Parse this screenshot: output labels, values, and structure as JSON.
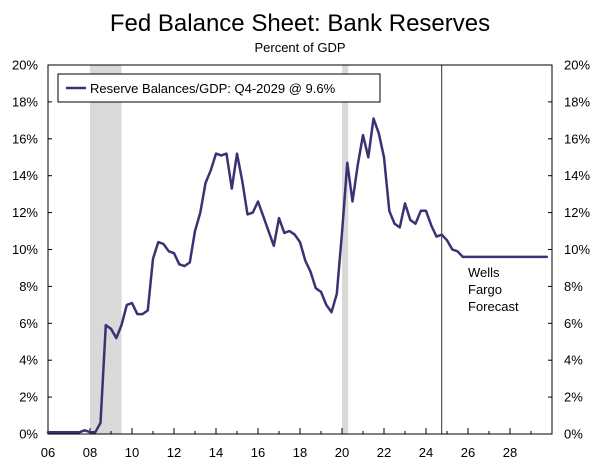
{
  "chart_data": {
    "type": "line",
    "title": "Fed Balance Sheet: Bank Reserves",
    "subtitle": "Percent of GDP",
    "xlabel": "",
    "ylabel": "",
    "xlim": [
      2006,
      2030
    ],
    "ylim": [
      0,
      20
    ],
    "x_ticks": [
      2006,
      2008,
      2010,
      2012,
      2014,
      2016,
      2018,
      2020,
      2022,
      2024,
      2026,
      2028
    ],
    "x_tick_labels": [
      "06",
      "08",
      "10",
      "12",
      "14",
      "16",
      "18",
      "20",
      "22",
      "24",
      "26",
      "28"
    ],
    "y_ticks": [
      0,
      2,
      4,
      6,
      8,
      10,
      12,
      14,
      16,
      18,
      20
    ],
    "y_tick_labels": [
      "0%",
      "2%",
      "4%",
      "6%",
      "8%",
      "10%",
      "12%",
      "14%",
      "16%",
      "18%",
      "20%"
    ],
    "legend": {
      "placement": "top-left",
      "entries": [
        "Reserve Balances/GDP: Q4-2029 @ 9.6%"
      ]
    },
    "recessions": [
      {
        "start": 2008.0,
        "end": 2009.5
      },
      {
        "start": 2020.0,
        "end": 2020.3
      }
    ],
    "forecast_start": 2024.75,
    "annotation": [
      "Wells",
      "Fargo",
      "Forecast"
    ],
    "colors": {
      "line": "#3b3275",
      "recession": "#d9d9d9",
      "axis": "#000000"
    },
    "series": [
      {
        "name": "Reserve Balances/GDP: Q4-2029 @ 9.6%",
        "points": [
          [
            2006.0,
            0.1
          ],
          [
            2006.5,
            0.1
          ],
          [
            2007.0,
            0.1
          ],
          [
            2007.5,
            0.1
          ],
          [
            2007.75,
            0.2
          ],
          [
            2008.0,
            0.1
          ],
          [
            2008.25,
            0.1
          ],
          [
            2008.5,
            0.6
          ],
          [
            2008.75,
            5.9
          ],
          [
            2009.0,
            5.7
          ],
          [
            2009.25,
            5.2
          ],
          [
            2009.5,
            5.9
          ],
          [
            2009.75,
            7.0
          ],
          [
            2010.0,
            7.1
          ],
          [
            2010.25,
            6.5
          ],
          [
            2010.5,
            6.5
          ],
          [
            2010.75,
            6.7
          ],
          [
            2011.0,
            9.5
          ],
          [
            2011.25,
            10.4
          ],
          [
            2011.5,
            10.3
          ],
          [
            2011.75,
            9.9
          ],
          [
            2012.0,
            9.8
          ],
          [
            2012.25,
            9.2
          ],
          [
            2012.5,
            9.1
          ],
          [
            2012.75,
            9.3
          ],
          [
            2013.0,
            11.0
          ],
          [
            2013.25,
            12.0
          ],
          [
            2013.5,
            13.6
          ],
          [
            2013.75,
            14.3
          ],
          [
            2014.0,
            15.2
          ],
          [
            2014.25,
            15.1
          ],
          [
            2014.5,
            15.2
          ],
          [
            2014.75,
            13.3
          ],
          [
            2015.0,
            15.2
          ],
          [
            2015.25,
            13.7
          ],
          [
            2015.5,
            11.9
          ],
          [
            2015.75,
            12.0
          ],
          [
            2016.0,
            12.6
          ],
          [
            2016.25,
            11.8
          ],
          [
            2016.5,
            11.0
          ],
          [
            2016.75,
            10.2
          ],
          [
            2017.0,
            11.7
          ],
          [
            2017.25,
            10.9
          ],
          [
            2017.5,
            11.0
          ],
          [
            2017.75,
            10.8
          ],
          [
            2018.0,
            10.4
          ],
          [
            2018.25,
            9.4
          ],
          [
            2018.5,
            8.8
          ],
          [
            2018.75,
            7.9
          ],
          [
            2019.0,
            7.7
          ],
          [
            2019.25,
            7.0
          ],
          [
            2019.5,
            6.6
          ],
          [
            2019.75,
            7.6
          ],
          [
            2020.0,
            10.9
          ],
          [
            2020.25,
            14.7
          ],
          [
            2020.5,
            12.6
          ],
          [
            2020.75,
            14.6
          ],
          [
            2021.0,
            16.2
          ],
          [
            2021.25,
            15.0
          ],
          [
            2021.5,
            17.1
          ],
          [
            2021.75,
            16.3
          ],
          [
            2022.0,
            15.0
          ],
          [
            2022.25,
            12.1
          ],
          [
            2022.5,
            11.4
          ],
          [
            2022.75,
            11.2
          ],
          [
            2023.0,
            12.5
          ],
          [
            2023.25,
            11.6
          ],
          [
            2023.5,
            11.4
          ],
          [
            2023.75,
            12.1
          ],
          [
            2024.0,
            12.1
          ],
          [
            2024.25,
            11.3
          ],
          [
            2024.5,
            10.7
          ],
          [
            2024.75,
            10.8
          ],
          [
            2025.0,
            10.5
          ],
          [
            2025.25,
            10.0
          ],
          [
            2025.5,
            9.9
          ],
          [
            2025.75,
            9.6
          ],
          [
            2026.0,
            9.6
          ],
          [
            2027.0,
            9.6
          ],
          [
            2028.0,
            9.6
          ],
          [
            2029.0,
            9.6
          ],
          [
            2029.75,
            9.6
          ]
        ]
      }
    ]
  }
}
